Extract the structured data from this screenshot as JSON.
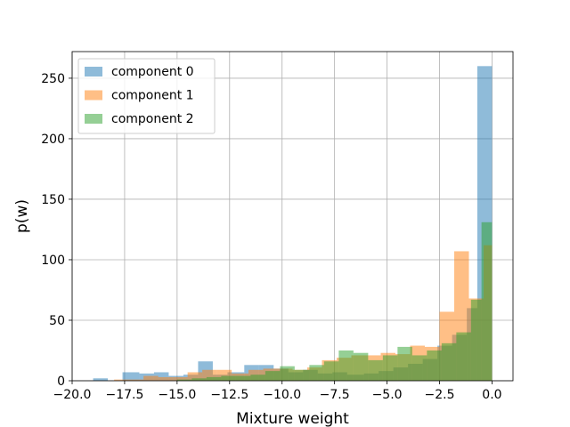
{
  "chart_data": {
    "type": "histogram",
    "xlabel": "Mixture weight",
    "ylabel": "p(w)",
    "xlim": [
      -20,
      1
    ],
    "ylim": [
      0,
      272
    ],
    "xticks": [
      -20.0,
      -17.5,
      -15.0,
      -12.5,
      -10.0,
      -7.5,
      -5.0,
      -2.5,
      0.0
    ],
    "xtick_labels": [
      "−20.0",
      "−17.5",
      "−15.0",
      "−12.5",
      "−10.0",
      "−7.5",
      "−5.0",
      "−2.5",
      "0.0"
    ],
    "yticks": [
      0,
      50,
      100,
      150,
      200,
      250
    ],
    "ytick_labels": [
      "0",
      "50",
      "100",
      "150",
      "200",
      "250"
    ],
    "grid": true,
    "bar_alpha": 0.5,
    "legend": {
      "placement": "top-left",
      "entries": [
        "component 0",
        "component 1",
        "component 2"
      ]
    },
    "series": [
      {
        "name": "component 0",
        "color": "#1f77b4",
        "bins": [
          {
            "x0": -19.0,
            "x1": -18.3,
            "y": 2
          },
          {
            "x0": -18.3,
            "x1": -17.6,
            "y": 0
          },
          {
            "x0": -17.6,
            "x1": -16.8,
            "y": 7
          },
          {
            "x0": -16.8,
            "x1": -16.1,
            "y": 6
          },
          {
            "x0": -16.1,
            "x1": -15.4,
            "y": 7
          },
          {
            "x0": -15.4,
            "x1": -14.7,
            "y": 4
          },
          {
            "x0": -14.7,
            "x1": -14.0,
            "y": 5
          },
          {
            "x0": -14.0,
            "x1": -13.3,
            "y": 16
          },
          {
            "x0": -13.3,
            "x1": -12.6,
            "y": 5
          },
          {
            "x0": -12.6,
            "x1": -11.8,
            "y": 7
          },
          {
            "x0": -11.8,
            "x1": -11.1,
            "y": 13
          },
          {
            "x0": -11.1,
            "x1": -10.4,
            "y": 13
          },
          {
            "x0": -10.4,
            "x1": -9.7,
            "y": 10
          },
          {
            "x0": -9.7,
            "x1": -9.0,
            "y": 7
          },
          {
            "x0": -9.0,
            "x1": -8.3,
            "y": 9
          },
          {
            "x0": -8.3,
            "x1": -7.6,
            "y": 6
          },
          {
            "x0": -7.6,
            "x1": -6.9,
            "y": 7
          },
          {
            "x0": -6.9,
            "x1": -6.1,
            "y": 5
          },
          {
            "x0": -6.1,
            "x1": -5.4,
            "y": 6
          },
          {
            "x0": -5.4,
            "x1": -4.7,
            "y": 8
          },
          {
            "x0": -4.7,
            "x1": -4.0,
            "y": 11
          },
          {
            "x0": -4.0,
            "x1": -3.3,
            "y": 14
          },
          {
            "x0": -3.3,
            "x1": -2.6,
            "y": 18
          },
          {
            "x0": -2.6,
            "x1": -1.9,
            "y": 29
          },
          {
            "x0": -1.9,
            "x1": -1.2,
            "y": 38
          },
          {
            "x0": -1.2,
            "x1": -0.7,
            "y": 60
          },
          {
            "x0": -0.7,
            "x1": 0.0,
            "y": 260
          }
        ]
      },
      {
        "name": "component 1",
        "color": "#ff7f0e",
        "bins": [
          {
            "x0": -18.0,
            "x1": -17.3,
            "y": 1
          },
          {
            "x0": -17.3,
            "x1": -16.6,
            "y": 1
          },
          {
            "x0": -16.6,
            "x1": -15.9,
            "y": 4
          },
          {
            "x0": -15.9,
            "x1": -15.2,
            "y": 3
          },
          {
            "x0": -15.2,
            "x1": -14.5,
            "y": 3
          },
          {
            "x0": -14.5,
            "x1": -13.8,
            "y": 7
          },
          {
            "x0": -13.8,
            "x1": -13.1,
            "y": 9
          },
          {
            "x0": -13.1,
            "x1": -12.4,
            "y": 9
          },
          {
            "x0": -12.4,
            "x1": -11.6,
            "y": 6
          },
          {
            "x0": -11.6,
            "x1": -10.9,
            "y": 9
          },
          {
            "x0": -10.9,
            "x1": -10.2,
            "y": 10
          },
          {
            "x0": -10.2,
            "x1": -9.5,
            "y": 10
          },
          {
            "x0": -9.5,
            "x1": -8.8,
            "y": 9
          },
          {
            "x0": -8.8,
            "x1": -8.1,
            "y": 11
          },
          {
            "x0": -8.1,
            "x1": -7.4,
            "y": 17
          },
          {
            "x0": -7.4,
            "x1": -6.7,
            "y": 19
          },
          {
            "x0": -6.7,
            "x1": -6.0,
            "y": 21
          },
          {
            "x0": -6.0,
            "x1": -5.3,
            "y": 21
          },
          {
            "x0": -5.3,
            "x1": -4.6,
            "y": 23
          },
          {
            "x0": -4.6,
            "x1": -3.9,
            "y": 22
          },
          {
            "x0": -3.9,
            "x1": -3.2,
            "y": 29
          },
          {
            "x0": -3.2,
            "x1": -2.5,
            "y": 28
          },
          {
            "x0": -2.5,
            "x1": -1.8,
            "y": 57
          },
          {
            "x0": -1.8,
            "x1": -1.1,
            "y": 107
          },
          {
            "x0": -1.1,
            "x1": -0.4,
            "y": 68
          },
          {
            "x0": -0.4,
            "x1": 0.0,
            "y": 112
          }
        ]
      },
      {
        "name": "component 2",
        "color": "#2ca02c",
        "bins": [
          {
            "x0": -15.0,
            "x1": -14.3,
            "y": 1
          },
          {
            "x0": -14.3,
            "x1": -13.6,
            "y": 2
          },
          {
            "x0": -13.6,
            "x1": -12.9,
            "y": 3
          },
          {
            "x0": -12.9,
            "x1": -12.2,
            "y": 4
          },
          {
            "x0": -12.2,
            "x1": -11.5,
            "y": 4
          },
          {
            "x0": -11.5,
            "x1": -10.8,
            "y": 5
          },
          {
            "x0": -10.8,
            "x1": -10.1,
            "y": 8
          },
          {
            "x0": -10.1,
            "x1": -9.4,
            "y": 12
          },
          {
            "x0": -9.4,
            "x1": -8.7,
            "y": 9
          },
          {
            "x0": -8.7,
            "x1": -8.0,
            "y": 13
          },
          {
            "x0": -8.0,
            "x1": -7.3,
            "y": 16
          },
          {
            "x0": -7.3,
            "x1": -6.6,
            "y": 25
          },
          {
            "x0": -6.6,
            "x1": -5.9,
            "y": 23
          },
          {
            "x0": -5.9,
            "x1": -5.2,
            "y": 17
          },
          {
            "x0": -5.2,
            "x1": -4.5,
            "y": 21
          },
          {
            "x0": -4.5,
            "x1": -3.8,
            "y": 28
          },
          {
            "x0": -3.8,
            "x1": -3.1,
            "y": 21
          },
          {
            "x0": -3.1,
            "x1": -2.4,
            "y": 25
          },
          {
            "x0": -2.4,
            "x1": -1.7,
            "y": 31
          },
          {
            "x0": -1.7,
            "x1": -1.0,
            "y": 40
          },
          {
            "x0": -1.0,
            "x1": -0.5,
            "y": 67
          },
          {
            "x0": -0.5,
            "x1": 0.0,
            "y": 131
          }
        ]
      }
    ]
  }
}
